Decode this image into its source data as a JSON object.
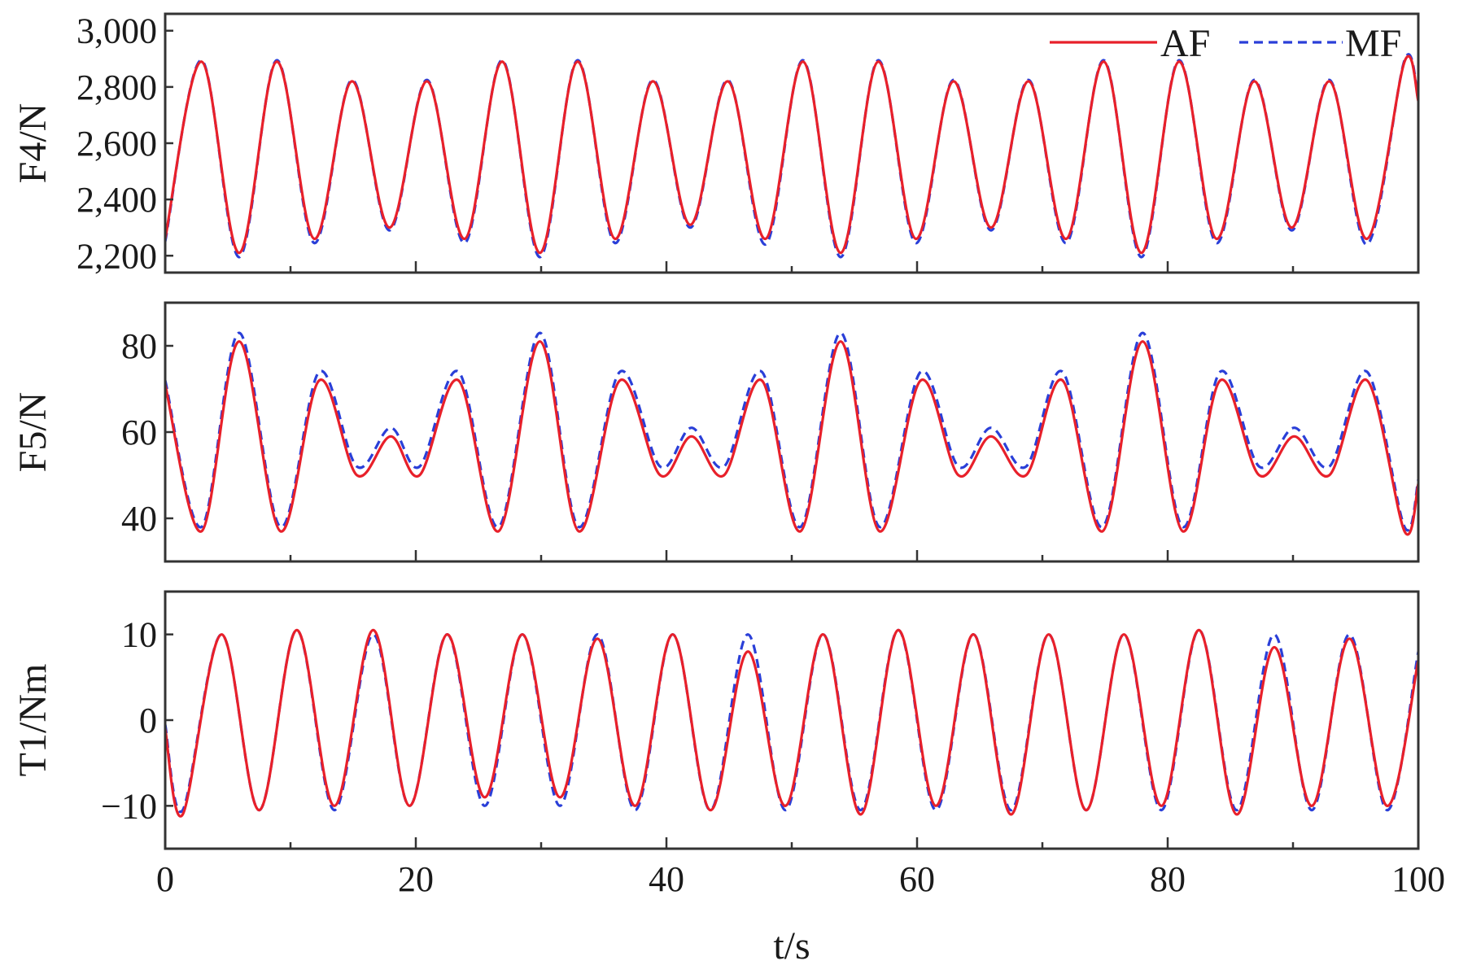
{
  "chart_data": [
    {
      "type": "line",
      "ylabel": "F4/N",
      "xlim": [
        0,
        100
      ],
      "ylim": [
        2140,
        3060
      ],
      "yticks": [
        2200,
        2400,
        2600,
        2800,
        3000
      ],
      "ytick_labels": [
        "2,200",
        "2,400",
        "2,600",
        "2,800",
        "3,000"
      ],
      "legend": {
        "position": "top-right",
        "entries": [
          "AF",
          "MF"
        ]
      },
      "series": [
        {
          "name": "AF",
          "color": "#e8202a",
          "style": "solid",
          "x": [
            0,
            2.9,
            5.9,
            8.9,
            11.9,
            14.9,
            17.9,
            20.9,
            23.9,
            26.9,
            29.9,
            32.9,
            35.9,
            38.9,
            41.9,
            44.9,
            47.9,
            50.9,
            53.9,
            56.9,
            59.9,
            62.9,
            65.9,
            68.9,
            71.9,
            74.9,
            77.9,
            80.9,
            83.9,
            86.9,
            89.9,
            92.9,
            95.9,
            98.9,
            100
          ],
          "y": [
            2260,
            2890,
            2210,
            2890,
            2260,
            2820,
            2300,
            2820,
            2260,
            2890,
            2210,
            2890,
            2260,
            2820,
            2310,
            2820,
            2260,
            2890,
            2210,
            2890,
            2260,
            2820,
            2300,
            2820,
            2260,
            2890,
            2210,
            2890,
            2260,
            2820,
            2300,
            2820,
            2260,
            2890,
            2750
          ]
        },
        {
          "name": "MF",
          "color": "#2a3fd8",
          "style": "dashed",
          "x": [
            0,
            2.9,
            5.9,
            8.9,
            11.9,
            14.9,
            17.9,
            20.9,
            23.9,
            26.9,
            29.9,
            32.9,
            35.9,
            38.9,
            41.9,
            44.9,
            47.9,
            50.9,
            53.9,
            56.9,
            59.9,
            62.9,
            65.9,
            68.9,
            71.9,
            74.9,
            77.9,
            80.9,
            83.9,
            86.9,
            89.9,
            92.9,
            95.9,
            98.9,
            100
          ],
          "y": [
            2250,
            2895,
            2195,
            2895,
            2245,
            2825,
            2290,
            2825,
            2245,
            2895,
            2195,
            2895,
            2245,
            2825,
            2300,
            2825,
            2240,
            2895,
            2195,
            2895,
            2245,
            2825,
            2290,
            2825,
            2245,
            2895,
            2195,
            2895,
            2245,
            2825,
            2290,
            2825,
            2240,
            2895,
            2755
          ]
        }
      ]
    },
    {
      "type": "line",
      "ylabel": "F5/N",
      "xlim": [
        0,
        100
      ],
      "ylim": [
        30,
        90
      ],
      "yticks": [
        40,
        60,
        80
      ],
      "ytick_labels": [
        "40",
        "60",
        "80"
      ],
      "series": [
        {
          "name": "AF",
          "color": "#e8202a",
          "style": "solid",
          "x": [
            0,
            2.9,
            5.9,
            9.2,
            12.3,
            15.3,
            18.0,
            20.3,
            23.4,
            26.6,
            29.9,
            33.0,
            36.3,
            39.5,
            42.0,
            44.6,
            47.6,
            50.7,
            53.9,
            57.0,
            60.3,
            63.3,
            65.9,
            68.7,
            71.6,
            74.8,
            78.0,
            81.2,
            84.2,
            87.3,
            90.1,
            92.9,
            95.9,
            98.9,
            100
          ],
          "y": [
            71,
            37,
            81,
            37,
            72,
            50,
            59,
            50,
            72,
            37,
            81,
            37,
            72,
            50,
            59,
            50,
            72,
            37,
            81,
            37,
            72,
            50,
            59,
            50,
            72,
            37,
            81,
            37,
            72,
            50,
            59,
            50,
            72,
            37,
            48
          ]
        },
        {
          "name": "MF",
          "color": "#2a3fd8",
          "style": "dashed",
          "x": [
            0,
            2.9,
            5.9,
            9.2,
            12.3,
            15.3,
            18.0,
            20.3,
            23.4,
            26.6,
            29.9,
            33.0,
            36.3,
            39.5,
            42.0,
            44.6,
            47.6,
            50.7,
            53.9,
            57.0,
            60.3,
            63.3,
            65.9,
            68.7,
            71.6,
            74.8,
            78.0,
            81.2,
            84.2,
            87.3,
            90.1,
            92.9,
            95.9,
            98.9,
            100
          ],
          "y": [
            72,
            38,
            83,
            38,
            74,
            52,
            61,
            52,
            74,
            38,
            83,
            38,
            74,
            52,
            61,
            52,
            74,
            38,
            83,
            38,
            74,
            52,
            61,
            52,
            74,
            38,
            83,
            38,
            74,
            52,
            61,
            52,
            74,
            38,
            49
          ]
        }
      ]
    },
    {
      "type": "line",
      "ylabel": "T1/Nm",
      "xlabel": "t/s",
      "xlim": [
        0,
        100
      ],
      "ylim": [
        -15,
        15
      ],
      "yticks": [
        -10,
        0,
        10
      ],
      "ytick_labels": [
        "−10",
        "0",
        "10"
      ],
      "xticks": [
        0,
        20,
        40,
        60,
        80,
        100
      ],
      "xtick_labels": [
        "0",
        "20",
        "40",
        "60",
        "80",
        "100"
      ],
      "series": [
        {
          "name": "AF",
          "color": "#e8202a",
          "style": "solid",
          "x": [
            0,
            1.4,
            4.5,
            7.5,
            10.5,
            13.5,
            16.6,
            19.5,
            22.5,
            25.5,
            28.5,
            31.5,
            34.5,
            37.5,
            40.5,
            43.5,
            46.5,
            49.5,
            52.5,
            55.5,
            58.5,
            61.5,
            64.5,
            67.5,
            70.5,
            73.5,
            76.5,
            79.5,
            82.5,
            85.5,
            88.5,
            91.5,
            94.5,
            97.5,
            100
          ],
          "y": [
            -1,
            -11,
            10,
            -10.5,
            10.5,
            -10,
            10.5,
            -10,
            10,
            -9,
            10,
            -9,
            9.5,
            -10,
            10,
            -10.5,
            8,
            -10,
            10,
            -11,
            10.5,
            -10,
            10,
            -11,
            10,
            -10.5,
            10,
            -10,
            10.5,
            -11,
            8.5,
            -10,
            9.5,
            -10,
            7
          ]
        },
        {
          "name": "MF",
          "color": "#2a3fd8",
          "style": "dashed",
          "x": [
            0,
            1.4,
            4.5,
            7.5,
            10.5,
            13.5,
            16.6,
            19.5,
            22.5,
            25.5,
            28.5,
            31.5,
            34.5,
            37.5,
            40.5,
            43.5,
            46.5,
            49.5,
            52.5,
            55.5,
            58.5,
            61.5,
            64.5,
            67.5,
            70.5,
            73.5,
            76.5,
            79.5,
            82.5,
            85.5,
            88.5,
            91.5,
            94.5,
            97.5,
            100
          ],
          "y": [
            -0.5,
            -10.5,
            10,
            -10.5,
            10.5,
            -10.5,
            10,
            -10,
            10,
            -10,
            10,
            -10,
            10,
            -10.5,
            10,
            -10.5,
            10,
            -10.5,
            10,
            -10.5,
            10.5,
            -10.5,
            10,
            -10.5,
            10,
            -10.5,
            10,
            -10.5,
            10.5,
            -10.5,
            10,
            -10.5,
            10,
            -10.5,
            8
          ]
        }
      ]
    }
  ]
}
